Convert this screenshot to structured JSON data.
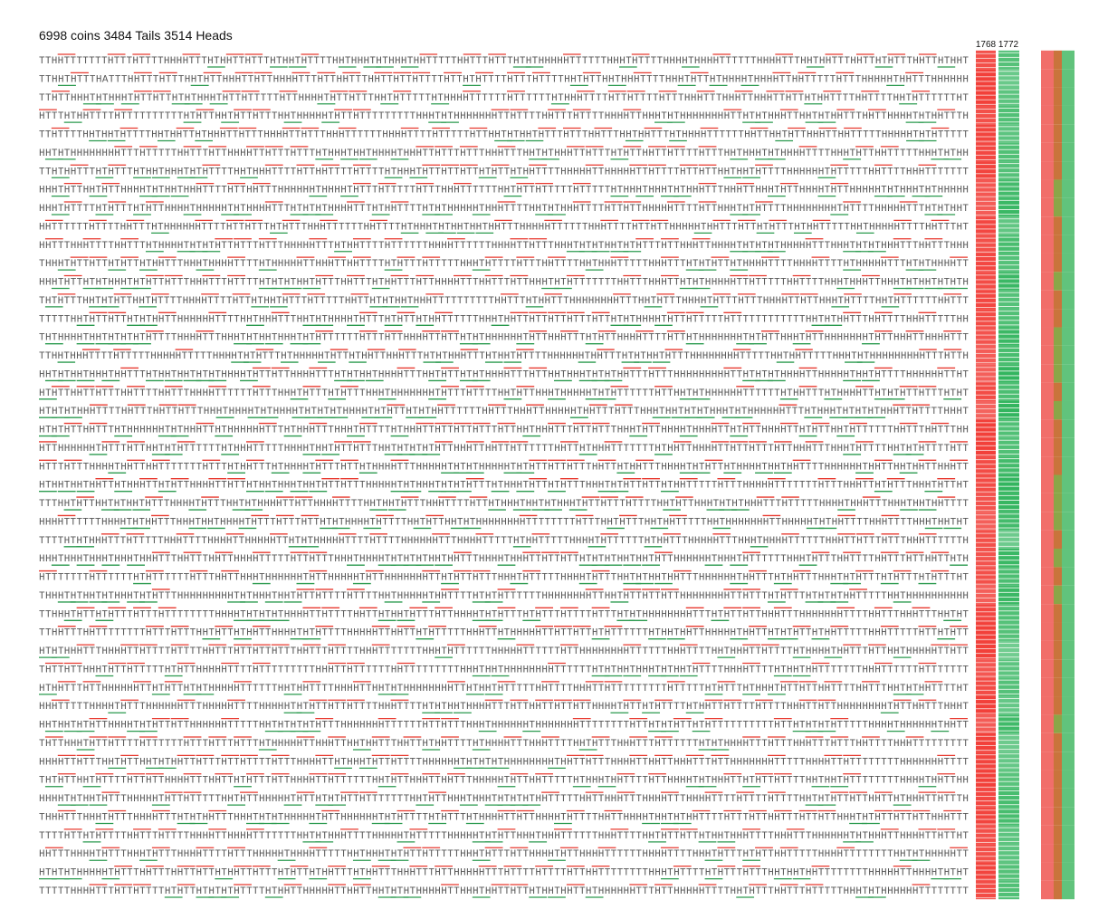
{
  "header": {
    "title": "6998 coins 3484 Tails 3514 Heads",
    "htt_count": "1768",
    "hth_count": "1772"
  },
  "rows": [
    "TTHHTTTTTTTHTTTHTTTTHHHHTTTHTHHTTHTTTHTHHTHTTTTHHTHHHTHTHHHTHHTTTTTHHTTTHTTTHTHTHHHHHTTTTTTHHHTHTTTTHHHHTHHHHTTTTTTHHHHTTTHHTHHTTTHHTTHTHTTTHHTTHTHHT",
    "TTHHTHTTTHATTTHHTTTHTTTHHTHTTHHHTTHTTHHHHTTTHTTHHTTTHHTTHTTHTTTTHTTHTHTTTTHTTTHTTTTHHTHTTHHTHHHTTTTHHHTHTTHTHHHHTHHHHTTHHTTTTTHTTTHHHHHTHHTTTHHHHHH",
    "TTHTTHHHTHTHHHTHTTHTTHTHTHHHTHTTHTTTTTHTTHHHHTHTTHTTTHHTHTTTTTHTHHHHTTTTTTHTTTTTTHTHHHTTTTHTTHTTTTHTTTHHHTTTHHHTTHHHTTHTTHTHHTTTTHHTTTTHHTHTTTTTTHT",
    "HTTTHTHHTTTTHTTTTTTTTTTHTHTTHHTHTTHTTTHHTHHHHHTHTTHTTTTTTTTTHHHTHTHHHHHHHTTHTTTTHHTTTHTTTTHHHHTTHHHTHTHHHHHHHHTTHTHTHHHTTHHTHTHHTTTHHTTHHHHTHTHHTTTH",
    "TTHTTTTHHTHHTHTTTTHHTHHTTHTHHHTTHTTTHHHHTTHTTTHHHTTTTTTHHHHTTTTHTTTTTHTTHHTHTHHTHTTTHTTTHHTTTHHTHHTTTHTHHHHTTTTTTHHTTHHTHTTHHHTTHHTTTTTHHHHHTHTHTTTTT",
    "HHTHTHHHHHHHHTTTHTTTTTHHTTTHTTHHHHTTHTTTHTTTHTHHHTHHTHHHHTHHHTTHTTTHTTTHHHTTTHHTHTHHHTTHTTTHTHTTHHTTHTTTTHTTTHHTHHHTHTHHHHTTTTHHHTHTTHHTTTTTHHHTHTHH",
    "TTHTHHTTTHTHTTTHTHHTHHHTHTHTTTTHHTHHHTTTTHTTHHTTTTHTTTTHTHHHTHTTHTTHTTHTHTTHTHHTTTTHHHHHTTHHHHHTTHTTTTHTTHTTHHTHHTHTTTTHHHHHHTHTTTTTHHTTTTHHHTTTTTTT",
    "HHHTHTTHHTHTTHHHHTHTHHTHHHTTTTHTTHHTTTHHHHHHTHHHHTHTTTHTTTTTHTTTHHHTTTTTTHHTHTTHTTTTTHTTTTTHTHHHTHHHTHTHHHTTTHHHTTHHHTHTTHHHHTHTTHHHHHTHTHHHTHTHHHHH",
    "HHHTHTTTTHTHTTTHTHTTHHHHTHHHHHTHTHHHHTTTHTHTHTHHHHTTTHTHHTTTTHTHTHHHHHTHHHTTTTHHTHTHHHTTTTHTTHTTHHHHHTTTTHTTHHHTHTHTTTTHHHHHHHHTHTTTTHHHHHTTTHTHTHHT",
    "HHTTTTTTHTTTTHHTTTHTHHHHHHTTTTHTTHTTTHTHTTTHHHTTTTTTHHTTTTHTHHHTHTHHTHHTHHTTTHHHHHTTTTTTHHHTTTTHTTHTTHHHHHTHHTTTHTTHTHTTTHTHHTTTTTHHTHHHHHTTTTHHTTTHT",
    "HHTTTHHHTTTTHHTTTHTHHHHTHTHTHTTHTTTHTTTHHHHHTTTHTHHTTTTHTTTTTTHHHHTTTTTTHHHHTTHTTTHHHTHTHTHHTHTHTTTHTTHHHTTHHHHTHTHTHTHHHHHTTTHHHTHTHTHHHTTTHHTTTHHH",
    "THHHTHTTHTTHTHTTHTHHTTTHHHTHHHHTTTTHTHHHHHTTHHHTTHHTTTTHTHTTTHTTTTTHHHTHTTTTHTTTHHTTTTHHTHHHTTTTTHHHTTTHTHTHTTHTHHHHTTTTHHHHTTTTHTHHHHHTTTHTHTHHHHTT",
    "HHHTHTTHTHTHHHTHTHTTHTTTHHHTTTHTTTTHTHTHTHHTHTTTHHTTTHTHHTTTHTTHHHHTTTHHTTTHTTHHHTHTHTTTTTTTHHTTTHHHTTHTHTHHHHHTTHTTTTTHHTTTTHHHTHHHTTHHHTHTHHTHTHTH",
    "THTHTTTHHTHTHTTHHTHTTTTHHHHTTTTHTTHTHHTHTTTHTTTTTHHTTHTHTHHTHHHTTTTTTTTTTHHTTTHTHHTTTHHHHHHHHTTTHHTHTTTHHHHTHTTTHTTTHHHHTTHTTHHHTHTTTTHHTHTTTTTTHHTTT",
    "TTTTTHHTHTTHTTHTHTHHTTHHHHHHTTTTHHTHHHTTTHHTHTHHHHTHTTTHTHTTHTHHTTTTTTHHHTHHTTHTTHTTHTTTHTTHTHTHHHHTHTTHTTTTTHTTTTTTTTTTTTHHTHTHHTTTHHTTTTHHHTTTTTHH",
    "THTHHHHTHHTHTHTHTHTTTTHHHHTTTHHHTHTHHTHHHTHTHTTTTTTHTTTHTTHHHHTTHTTHTHTHHHHHHTHTTHHHTTTHTHTTHHHHTTTTHTTHTHHHHHHHTHTHTTHHHTHTTHHHHHHHTHTTHHHTTHHHHTTT",
    "TTHHTHHHTTTTHTTTTTHHHHHTTTTTHHHHTHTHTTTHTHHHHHTHTTHTHHTTHHHTTTHTHTHHHTTTHTHHTHTTTTHHHHHHTHHTTTHTHTHHTHTTTHHHHHHHHTTTTTHHTHHTTTTTHHHTHTHHHHHHHHHTTTHTTH",
    "HHTHTHHTHHHTHHTTTHTHHTHHTHTHTHHHHTHTTHTTHHHHTTTHTHTHHTHHHHTTTHHTHTTHTHTHHHHTTTHTTHHTHHHTHTHTHHTTTHTTTHHHHHHHHHTTHTHTHTHHHHTTHHHHHTHHTHTTTTHHHHHHTTHT",
    "HTHTTHHTTHTTTHHTTTTHHTTTHHHHTTTTTTHTTTHHHTHTTTHTHTTTHHHTHHHHHHHTHTTTHTTTTHHTHTTHHHTHHHHHTHTHTTTTTTHTTHHTHTHHHHHHTTTTTTHTHHTTTHTHHHHTTHTHTHTTHTTTHTHT",
    "HTHTHTHHHTTTTHHTTTHHTTHTTTHHHTHHHHTHTHHHHTHTHTHTHHHHTHTHTTHTHTHHTTTTTTHHTTTHHHTTHHHHHTHHTTTHTTTHHHTHHTHTHTHHHTHTHHHHHHTTTHTHHHTHTHTHTHHHTTHTTTTHHHT",
    "HTHTHTTHHTTTHTHHHHHHTHTHHHTTHTHHHHHHTTTHTHHHTTTHHHTHTTTTHTHHHTTHTTHTTHTTTHTTHHTHHHTTTHTTHTTTHHHTHTTHHHHTHHHHTTHTHTTHHHHTTHTHTTHHTHTTTTTTHHTTTHHTTTHH",
    "HTTHHHHHHTHTTTHTTHHTHTHTTTTTTHTHHHTTTTTHHHHTHHTHTTHTTTHHTHTHTHTHTTHHHTTHHTTHTTTTTTHHTTHTHHHTTTTTTTHTHHTTHHHHTTHTTHTTTHTTHHHTTTHHHTHTTTTHHTHTHTTTTHTT",
    "HTTTHTTTHHHHTHHTTHHTTTTTTTHTTTHTHHTTTHTHHHHTHTTTHTTHTHHHHTTTHHHHHTHTHTHHHHHTHTHTTHTTHTTTHHTTHTHHTTTHHHHTHTHTTHTHHHHTHHTHHTTTTHHHHHHTHHTTHHTHHTTHHHTT",
    "HTHHTHHTHHTTHTHHHTTHTHTTHHHHTTHTTHTHHTHHHTHHTHTTHTTTHHHHHTHTHHHTHTHTHTTTHTHHHTHTTHTHTTTHHHTHTHTTHTTHTHHTTTTTHTTTHHHHHTTTTTTTHTTTHHHTTHTHTTTHHHTHTTHT",
    "TTTHHTHTTHHTHTHHTHTTTHHHHTHTTTHHTHTHHHHTTHTTHHHHTTTTHHTHHTHTTTHHHTTTTHTTHTHHHTHHTHTHHHTHTTHTTTHTTTTHHTHTTHHHTHTHTHHHTTTHTTTTTHHHHTHHHTTTHHHTHHTHHTTTT",
    "HHHHTTTTTTHHHHTHTHHTTTHHHTHHTHHHHTHTTTHTTTHTTHTHTHHHHTHTTTTHHTHTTHHTHTHHHHHHHHTTTTTTTTHTTTHHTHTTTHHTHHTTTTTHHTHHHHHHHTTHHHHHTHTHHTTTTHHHTTTTHHHTHHTHT",
    "TTTTHTHTHHHTTTHTTTTTHHHTTTTHHHHTTHHHHHTTHTHTHHHHHTTTTHTTTTHHHHHHTTTHHHHTTTTTHTHHTTTTTHHHHTHTTTTTTHTHHTTTHHHHHTTTHHHTHHHHTTTTTTHHHTTHTTTHTTTHHHTTTTTTH",
    "HHHTHHHTHHHTHHHTHHHTTTHHTTTHHTTHHHHTTTTTHTTHTTTHHHTHHHHTHTHTHTHHTHHTTTHHHHTHHHTTHTTHTTHTHTHTHHTHHTHTTHHHHHHTHHHTHTTTTTTHHHTHTTTHHTTTTHHTTTHTTHHTTHTH",
    "HTTTTTTTHTTTTTTHTHTTTTTTHTTTHHTTHHHTHHHHHHTHTTHHHHHTHTTHHHHHHHTTHTHTTHTTTHHHTHTTTTTHHHHTHTTTHHTHTHHTHHTTTHHHHHHTHHTTTHTHHTTTHHHTHTHTTTHTHTTTHTHTTTHT",
    "THHHTHTHHTHTHHHTHTHTTTHHHHHHHHHTHTHHHTHHTHTTHTTTTHTTTTHHTHHHHHTHHTTTTHTHTHTTTTTTHHHHHHHHTTHHTHTTHTTHTTHHHHHHHHTTHTTTHTHTTTHTHTHTHHTTTTTHHTHHHHHHHHHH",
    "TTHHHTHTTHTHTTTHTTTHTTTTTTTTHHHHTHTHTHTHHHHTTHTTTTHHTTHTHHTHTTTHTTHHHHTHTHTTTHTHTTTHTTTTHTTTHTHTHHHHHHHHTTTHTHTTHTTHHHTTTHHHHHHHTTTTHHTTTHHHTTTHHTHT",
    "TTHHTTTHHTTTTTTTTHTTTHTTTHHTHTTHTHHTTHHHHTHTHTTTTHHHHHTTHHTTHTHTTTTTHHHTTHTHHHHHTTHTTHTTHTHTTTTTTHTHHTHHTTHHHHHTHHTTHTHTHTTHTHHTTTTTHHHTTTTTHTTHTHTT",
    "HTHTHHHTTTHHHHTTHTTTTHTTTTHHTTTHTTHTTHTTTHHTTTHTTTTHHHTTTTTTTHHHTHTTTTTTHHHHHTTTTTTHTTHHHHHHHHTTTTTTHHHTTTTHHTHHHTTHTTTTHTHHHHTHHTTTHTTHHTHHHHHTTHTT",
    "THTTHTTHHHTHTTHTTTTTHTHTTHHHHHTTTTHTTTTTTTTTHHHTTHTTTTTTHHTTTTTTTTTHHHTHHTHHHHHHHHTTTTTTHTHTHHTHHHTHTHHTHTTTTHHHHTTTTHTHHTHHTTTTTTTHHHTTTTTTHTTTTTTT",
    "HTHHTTTHTTHHHHHHTTHTHTTHTHTHHHHHTTTTTTHHTHHTTTTHHHHTTHHTHTHHHHHHHHTTHTHHTHTTTTTHHTTTTHHHTTHTTTTTTTTTHTTTTTHTHTTTHTHHHTHTTHTTHHTTTTHHTTTHHTHTHHTTTTHT",
    "HHHTTTTTHHHHTHTTTHHHHHHTTTHHHHHTTTTHHHHHTHTHTTHTTHTTTTHHHTTTTHTHTHHTHHHHTTTHTTHHTTHTTHTTHHHHTHTTHTHTTTTHTHHTTHTTTTHTTTTHHHTTHTTHHHHHHHHTHTTHHTTTHHHT",
    "HHTHHTHTHTTHHHHTHTHTTHTTHHHHHHTTTTTHHTHTHTHTHTTTHHHHHHHTTTTTTHTTHTTTHHHTHHHHHHTHHHHHHHTTTTTTTTHTTHTHTHTTHTHTTTTTTTTTTHTTHTHTHTHTTTTTHHHHTHHHHHHTHHTT",
    "THTTHHHTHTTHTTTTHTTTTTTHTTTHTTTHTTTHTHHHHHTTHHHTTHHTHHTTTHHTTHTHHTTTTHTHHHHTTTHHHTTTTHHTHTTTHHHTTTHTTTTTTHTHTHHHHTTTHTTTHHHTTTHTTTHHTTTTHHHTTTTTTTTT",
    "HHHHTTHTTTHHTHTTHHTHTHHTTHTTTHTTHTTTTHTTTHHHHTTHTHHHTHTTHTTTTHHHHHHTHTHTHTHHHHHHHHTHHTTHTTTHHHHTTHHTTHHHTTTHTTHHHHHHHTTTTTHHHHTTHTTTTTTTTHHHHHHHTTTT",
    "THTHTTHHTHTTTTHTTHTTHHHHTTTHHTTHTHTTTHTTHHHHTTHTTTTTTHHTHTTHHHTTHHTTTHHHHHTHTTHHTTTTTHTHHHTHHTTTTHTTHHHHTHTHHHTTHTHTTHTTTTHHTHHTHTTTTTTTTHHHHTHHTTHH",
    "HHHHTHTHHTHTTTHHHHHTHTTHTTTTTHHTHTTHHHHHTHTTHTHTHTTHTTTTTTTHHTHTTHHHTHHHTHTHTHTHHTTTTTHHTTHHHTTTHHHHTTTHHHHTTTTHTTTTHTTTTHHTHTHTTHTTHHTTHTHHHTTHTTTH",
    "THHHTTTHHHTHTTTHHHHTTTHTHTHHTTTHHHTHTHTHHHHHTHTTHHHHHHTHTHTTTTHTHTTTHTHHHHTTHTTHHHHTHTTTTHHTTHHHHTHHTHTHHTTTTHTTTHTTHHTTTHTTHTTHHHTHTHTTHTTHTTHHHTTT",
    "TTTTHTTHTHTTTTHHTTTHTTTTHHHHTTHHHHTTTTTTTHHTHTHHHTTTTHHHHHTHTTTTTHHHHHTHTHTTHHHTHHHTTTTTTHHHTTTTHHTHTTHTTHTHHTHHHTTTTHHHTTTHHHHHHTHTHHHTTHHHHTTHTTHT",
    "HHTTTHHHHTHTTTHHHTHTTTHHHHTTTTHTTTHHHHHTHHHHTTTTTHHTHHHTHTHTTHTTTTTHHHTHTTTHTTHHHHTHTTHHHHTTTTTTHHHHTTTTHHHTHTTTHTHTTHHTTTTTHHHHTTTTTTTTHHTHTHHHHHTT",
    "HTHTHTHHHHHTHTTTHHTTTHHTTHTTHTHHTTHTTTHTHTTHTHHTTTHTHHTTTHHHTTTHTTHHHHHTTTHTTTTHTTTTHTTHHTTTTTTTTHHHTHTTTTHTHTTTHTTTHHTHHTHHTTTTTTTTHHHHHTTHHHHTHTHT",
    "TTTTTHHHHTTTHTTHTTTTHTHTTHTHTHTHTTTTHTHHTTHHHHHTTHHTTHHTHTHTHHHHHTTHHHTHHTTHTTHTHHTHHTTHTHHHHHHTTTHTTHHHHHTTTTHHTHTTTHHTTTHTTTTTHHHTHTHHHHHHTTTTTTTT"
  ]
}
